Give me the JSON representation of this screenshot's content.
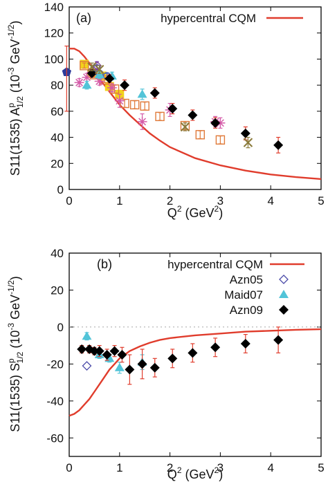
{
  "chart_data": [
    {
      "type": "scatter",
      "panel_label": "(a)",
      "xlabel": {
        "base": "Q",
        "sup": "2",
        "unit_open": " (GeV",
        "unit_sup": "2",
        "unit_close": ")"
      },
      "ylabel": {
        "pre": "S11(1535) A",
        "sup": "p",
        "sub": "1/2",
        "unit": " (10",
        "unit_sup1": "-3",
        "unit_mid": " GeV",
        "unit_sup2": "-1/2",
        "unit_close": ")"
      },
      "xlim": [
        0,
        5
      ],
      "ylim": [
        0,
        140
      ],
      "xticks": [
        "0",
        "1",
        "2",
        "3",
        "4",
        "5"
      ],
      "yticks": [
        "0",
        "20",
        "40",
        "60",
        "80",
        "100",
        "120",
        "140"
      ],
      "legend": [
        {
          "label": "hypercentral CQM",
          "series": "curve"
        }
      ],
      "curve": {
        "name": "hypercentral CQM",
        "color": "#e03c2c",
        "points": [
          [
            0,
            108
          ],
          [
            0.1,
            108
          ],
          [
            0.2,
            106
          ],
          [
            0.3,
            102
          ],
          [
            0.4,
            97
          ],
          [
            0.5,
            91
          ],
          [
            0.6,
            85
          ],
          [
            0.7,
            80
          ],
          [
            0.8,
            75
          ],
          [
            0.9,
            70
          ],
          [
            1.0,
            65
          ],
          [
            1.2,
            57
          ],
          [
            1.4,
            50
          ],
          [
            1.6,
            43
          ],
          [
            1.8,
            37.5
          ],
          [
            2.0,
            32.5
          ],
          [
            2.5,
            24
          ],
          [
            3.0,
            18.5
          ],
          [
            3.5,
            14.5
          ],
          [
            4.0,
            11.5
          ],
          [
            4.5,
            9.5
          ],
          [
            5.0,
            8
          ]
        ]
      },
      "series": [
        {
          "marker": "pentagon",
          "color": "#2b3a9a",
          "points": [
            [
              -0.05,
              90,
              0
            ]
          ]
        },
        {
          "marker": "errorbar-only",
          "color": "#e03c2c",
          "points": [
            [
              -0.05,
              85,
              25
            ]
          ]
        },
        {
          "marker": "square-filled",
          "color": "#f2d21b",
          "points": [
            [
              0.3,
              96,
              3
            ],
            [
              0.45,
              89,
              3
            ],
            [
              0.65,
              87,
              3
            ],
            [
              0.8,
              79,
              3
            ],
            [
              1.0,
              73,
              3
            ]
          ]
        },
        {
          "marker": "square-open",
          "color": "#e07a3a",
          "points": [
            [
              0.3,
              95,
              2
            ],
            [
              0.5,
              88,
              2
            ],
            [
              0.7,
              84,
              2
            ],
            [
              0.9,
              77,
              3
            ],
            [
              1.1,
              66,
              3
            ],
            [
              1.3,
              65,
              3
            ],
            [
              1.5,
              64,
              3
            ],
            [
              1.8,
              56,
              3
            ],
            [
              2.3,
              49,
              3
            ],
            [
              2.6,
              42,
              3
            ],
            [
              3.0,
              38,
              3
            ]
          ]
        },
        {
          "marker": "asterisk",
          "color": "#d45aa8",
          "points": [
            [
              0.2,
              82,
              3
            ],
            [
              0.35,
              86,
              3
            ],
            [
              0.45,
              90,
              3
            ],
            [
              0.6,
              83,
              3
            ],
            [
              0.85,
              78,
              3
            ],
            [
              1.0,
              68,
              5
            ],
            [
              1.45,
              52,
              6
            ],
            [
              2.0,
              61,
              5
            ],
            [
              2.9,
              52,
              4
            ],
            [
              3.0,
              51,
              4
            ]
          ]
        },
        {
          "marker": "circle-open",
          "color": "#4a63b8",
          "points": [
            [
              0.55,
              93,
              2
            ],
            [
              0.6,
              89,
              2
            ],
            [
              0.75,
              87,
              2
            ]
          ]
        },
        {
          "marker": "diamond-open",
          "color": "#7a3ea0",
          "points": [
            [
              0.55,
              95,
              3
            ]
          ]
        },
        {
          "marker": "triangle",
          "color": "#52c4d8",
          "points": [
            [
              0.35,
              80,
              3
            ],
            [
              0.6,
              88,
              3
            ],
            [
              0.85,
              87,
              3
            ],
            [
              1.45,
              73,
              4
            ]
          ]
        },
        {
          "marker": "diamond-filled",
          "color": "#000000",
          "points": [
            [
              0.45,
              89,
              3
            ],
            [
              0.8,
              85,
              3
            ],
            [
              1.1,
              80,
              4
            ],
            [
              1.7,
              74,
              4
            ],
            [
              2.05,
              62,
              4
            ],
            [
              2.45,
              57,
              4
            ],
            [
              2.9,
              51,
              4
            ],
            [
              3.5,
              43,
              5
            ],
            [
              4.15,
              34,
              6
            ]
          ]
        },
        {
          "marker": "cross",
          "color": "#8a7a3a",
          "points": [
            [
              0.45,
              94,
              3
            ],
            [
              0.6,
              92,
              3
            ],
            [
              2.3,
              48,
              3
            ],
            [
              3.55,
              36,
              4
            ]
          ]
        }
      ]
    },
    {
      "type": "scatter",
      "panel_label": "(b)",
      "xlabel": {
        "base": "Q",
        "sup": "2",
        "unit_open": " (GeV",
        "unit_sup": "2",
        "unit_close": ")"
      },
      "ylabel": {
        "pre": "S11(1535) S",
        "sup": "p",
        "sub": "1/2",
        "unit": " (10",
        "unit_sup1": "-3",
        "unit_mid": " GeV",
        "unit_sup2": "-1/2",
        "unit_close": ")"
      },
      "xlim": [
        0,
        5
      ],
      "ylim": [
        -70,
        40
      ],
      "xticks": [
        "0",
        "1",
        "2",
        "3",
        "4",
        "5"
      ],
      "yticks": [
        "-60",
        "-40",
        "-20",
        "0",
        "20",
        "40"
      ],
      "legend": [
        {
          "label": "hypercentral CQM",
          "series": "curve"
        },
        {
          "label": "Azn05",
          "series": "azn05"
        },
        {
          "label": "Maid07",
          "series": "maid07"
        },
        {
          "label": "Azn09",
          "series": "azn09"
        }
      ],
      "curve": {
        "name": "hypercentral CQM",
        "color": "#e03c2c",
        "points": [
          [
            0,
            -48
          ],
          [
            0.1,
            -47
          ],
          [
            0.2,
            -45
          ],
          [
            0.3,
            -42
          ],
          [
            0.4,
            -39
          ],
          [
            0.5,
            -35
          ],
          [
            0.6,
            -31
          ],
          [
            0.7,
            -27
          ],
          [
            0.8,
            -23
          ],
          [
            0.9,
            -20
          ],
          [
            1.0,
            -17
          ],
          [
            1.2,
            -13
          ],
          [
            1.4,
            -10.5
          ],
          [
            1.6,
            -8.5
          ],
          [
            1.8,
            -7
          ],
          [
            2.0,
            -6
          ],
          [
            2.5,
            -4.5
          ],
          [
            3.0,
            -3.5
          ],
          [
            3.5,
            -2.5
          ],
          [
            4.0,
            -2
          ],
          [
            4.5,
            -1.5
          ],
          [
            5.0,
            -1.2
          ]
        ]
      },
      "series": [
        {
          "id": "azn05",
          "name": "Azn05",
          "marker": "diamond-open",
          "color": "#4a4aa8",
          "points": [
            [
              0.35,
              -21,
              0
            ]
          ]
        },
        {
          "id": "maid07",
          "name": "Maid07",
          "marker": "triangle",
          "color": "#52c4d8",
          "points": [
            [
              0.35,
              -5,
              2
            ],
            [
              0.6,
              -15,
              2
            ],
            [
              0.8,
              -17,
              2
            ],
            [
              1.0,
              -22,
              3
            ],
            [
              1.45,
              -19,
              4
            ]
          ]
        },
        {
          "id": "azn09",
          "name": "Azn09",
          "marker": "diamond-filled",
          "color": "#000000",
          "points": [
            [
              0.25,
              -12,
              2
            ],
            [
              0.4,
              -12,
              2
            ],
            [
              0.5,
              -13,
              2
            ],
            [
              0.6,
              -13,
              3
            ],
            [
              0.75,
              -15,
              3
            ],
            [
              0.9,
              -13,
              3
            ],
            [
              1.05,
              -15,
              4
            ],
            [
              1.2,
              -23,
              8
            ],
            [
              1.45,
              -20,
              8
            ],
            [
              1.7,
              -22,
              5
            ],
            [
              2.05,
              -17,
              5
            ],
            [
              2.45,
              -14,
              5
            ],
            [
              2.9,
              -11,
              5
            ],
            [
              3.5,
              -9,
              5
            ],
            [
              4.15,
              -7,
              7
            ]
          ]
        }
      ]
    }
  ]
}
